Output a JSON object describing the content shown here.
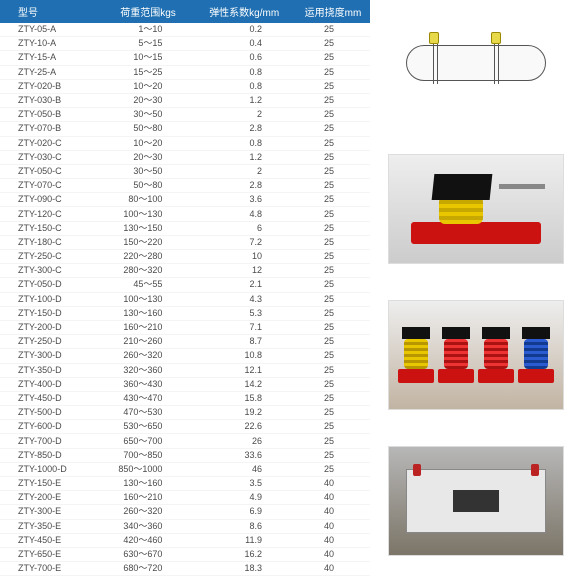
{
  "header": {
    "colors": {
      "bg": "#1f6fb2",
      "text": "#ffffff"
    },
    "columns": [
      "型号",
      "荷重范围kgs",
      "弹性系数kg/mm",
      "运用挠度mm"
    ]
  },
  "rows": [
    {
      "model": "ZTY-05-A",
      "load": "1～10",
      "k": "0.2",
      "disp": "25"
    },
    {
      "model": "ZTY-10-A",
      "load": "5～15",
      "k": "0.4",
      "disp": "25"
    },
    {
      "model": "ZTY-15-A",
      "load": "10～15",
      "k": "0.6",
      "disp": "25"
    },
    {
      "model": "ZTY-25-A",
      "load": "15～25",
      "k": "0.8",
      "disp": "25"
    },
    {
      "model": "ZTY-020-B",
      "load": "10～20",
      "k": "0.8",
      "disp": "25"
    },
    {
      "model": "ZTY-030-B",
      "load": "20～30",
      "k": "1.2",
      "disp": "25"
    },
    {
      "model": "ZTY-050-B",
      "load": "30～50",
      "k": "2",
      "disp": "25"
    },
    {
      "model": "ZTY-070-B",
      "load": "50～80",
      "k": "2.8",
      "disp": "25"
    },
    {
      "model": "ZTY-020-C",
      "load": "10～20",
      "k": "0.8",
      "disp": "25"
    },
    {
      "model": "ZTY-030-C",
      "load": "20～30",
      "k": "1.2",
      "disp": "25"
    },
    {
      "model": "ZTY-050-C",
      "load": "30～50",
      "k": "2",
      "disp": "25"
    },
    {
      "model": "ZTY-070-C",
      "load": "50～80",
      "k": "2.8",
      "disp": "25"
    },
    {
      "model": "ZTY-090-C",
      "load": "80～100",
      "k": "3.6",
      "disp": "25"
    },
    {
      "model": "ZTY-120-C",
      "load": "100～130",
      "k": "4.8",
      "disp": "25"
    },
    {
      "model": "ZTY-150-C",
      "load": "130～150",
      "k": "6",
      "disp": "25"
    },
    {
      "model": "ZTY-180-C",
      "load": "150～220",
      "k": "7.2",
      "disp": "25"
    },
    {
      "model": "ZTY-250-C",
      "load": "220～280",
      "k": "10",
      "disp": "25"
    },
    {
      "model": "ZTY-300-C",
      "load": "280～320",
      "k": "12",
      "disp": "25"
    },
    {
      "model": "ZTY-050-D",
      "load": "45～55",
      "k": "2.1",
      "disp": "25"
    },
    {
      "model": "ZTY-100-D",
      "load": "100～130",
      "k": "4.3",
      "disp": "25"
    },
    {
      "model": "ZTY-150-D",
      "load": "130～160",
      "k": "5.3",
      "disp": "25"
    },
    {
      "model": "ZTY-200-D",
      "load": "160～210",
      "k": "7.1",
      "disp": "25"
    },
    {
      "model": "ZTY-250-D",
      "load": "210～260",
      "k": "8.7",
      "disp": "25"
    },
    {
      "model": "ZTY-300-D",
      "load": "260～320",
      "k": "10.8",
      "disp": "25"
    },
    {
      "model": "ZTY-350-D",
      "load": "320～360",
      "k": "12.1",
      "disp": "25"
    },
    {
      "model": "ZTY-400-D",
      "load": "360～430",
      "k": "14.2",
      "disp": "25"
    },
    {
      "model": "ZTY-450-D",
      "load": "430～470",
      "k": "15.8",
      "disp": "25"
    },
    {
      "model": "ZTY-500-D",
      "load": "470～530",
      "k": "19.2",
      "disp": "25"
    },
    {
      "model": "ZTY-600-D",
      "load": "530～650",
      "k": "22.6",
      "disp": "25"
    },
    {
      "model": "ZTY-700-D",
      "load": "650～700",
      "k": "26",
      "disp": "25"
    },
    {
      "model": "ZTY-850-D",
      "load": "700～850",
      "k": "33.6",
      "disp": "25"
    },
    {
      "model": "ZTY-1000-D",
      "load": "850～1000",
      "k": "46",
      "disp": "25"
    },
    {
      "model": "ZTY-150-E",
      "load": "130～160",
      "k": "3.5",
      "disp": "40"
    },
    {
      "model": "ZTY-200-E",
      "load": "160～210",
      "k": "4.9",
      "disp": "40"
    },
    {
      "model": "ZTY-300-E",
      "load": "260～320",
      "k": "6.9",
      "disp": "40"
    },
    {
      "model": "ZTY-350-E",
      "load": "340～360",
      "k": "8.6",
      "disp": "40"
    },
    {
      "model": "ZTY-450-E",
      "load": "420～460",
      "k": "11.9",
      "disp": "40"
    },
    {
      "model": "ZTY-650-E",
      "load": "630～670",
      "k": "16.2",
      "disp": "40"
    },
    {
      "model": "ZTY-700-E",
      "load": "680～720",
      "k": "18.3",
      "disp": "40"
    }
  ],
  "thumbnails": [
    {
      "name": "pipe-hanger-diagram",
      "type": "diagram"
    },
    {
      "name": "spring-mount-single",
      "type": "photo",
      "bg": "#dddddd"
    },
    {
      "name": "spring-mounts-four",
      "type": "photo",
      "bg": "#cfc4b4"
    },
    {
      "name": "base-plate",
      "type": "photo",
      "bg": "#8f897e"
    }
  ]
}
